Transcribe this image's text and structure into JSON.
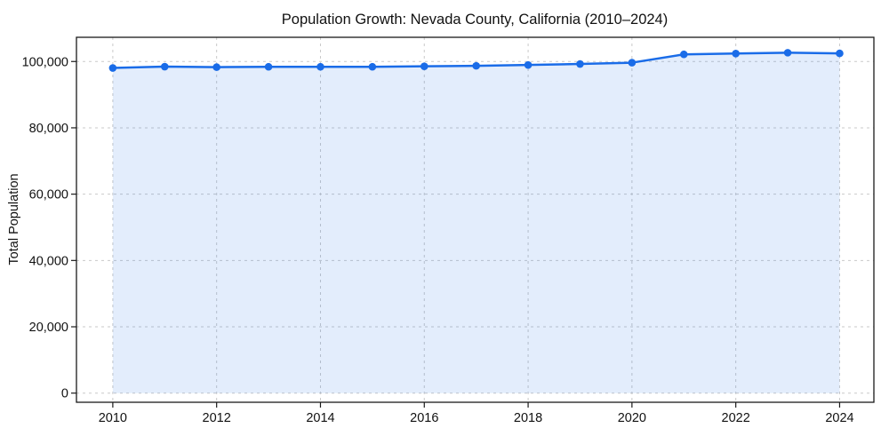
{
  "figure": {
    "title": "Population Growth: Nevada County, California (2010–2024)",
    "ylabel": "Total Population"
  },
  "chart_data": {
    "type": "area",
    "title": "Population Growth: Nevada County, California (2010–2024)",
    "xlabel": "",
    "ylabel": "Total Population",
    "x": [
      2010,
      2011,
      2012,
      2013,
      2014,
      2015,
      2016,
      2017,
      2018,
      2019,
      2020,
      2021,
      2022,
      2023,
      2024
    ],
    "series": [
      {
        "name": "Total Population",
        "values": [
          98050,
          98450,
          98300,
          98400,
          98400,
          98400,
          98550,
          98700,
          98950,
          99250,
          99650,
          102150,
          102400,
          102650,
          102450
        ]
      }
    ],
    "xlim": [
      2009.3,
      2024.66
    ],
    "ylim": [
      -2760,
      107300
    ],
    "xticks": [
      2010,
      2012,
      2014,
      2016,
      2018,
      2020,
      2022,
      2024
    ],
    "xtick_labels": [
      "2010",
      "2012",
      "2014",
      "2016",
      "2018",
      "2020",
      "2022",
      "2024"
    ],
    "yticks": [
      0,
      20000,
      40000,
      60000,
      80000,
      100000
    ],
    "ytick_labels": [
      "0",
      "20,000",
      "40,000",
      "60,000",
      "80,000",
      "100,000"
    ],
    "grid": true,
    "grid_style": "dashed",
    "legend_position": "none",
    "colors": {
      "line": "#1a6ce8",
      "marker": "#1a6ce8",
      "fill": "#1a6ce8",
      "fill_opacity": 0.12,
      "grid": "#c9c9c9",
      "spine": "#1a1a1a",
      "text": "#111111"
    }
  }
}
